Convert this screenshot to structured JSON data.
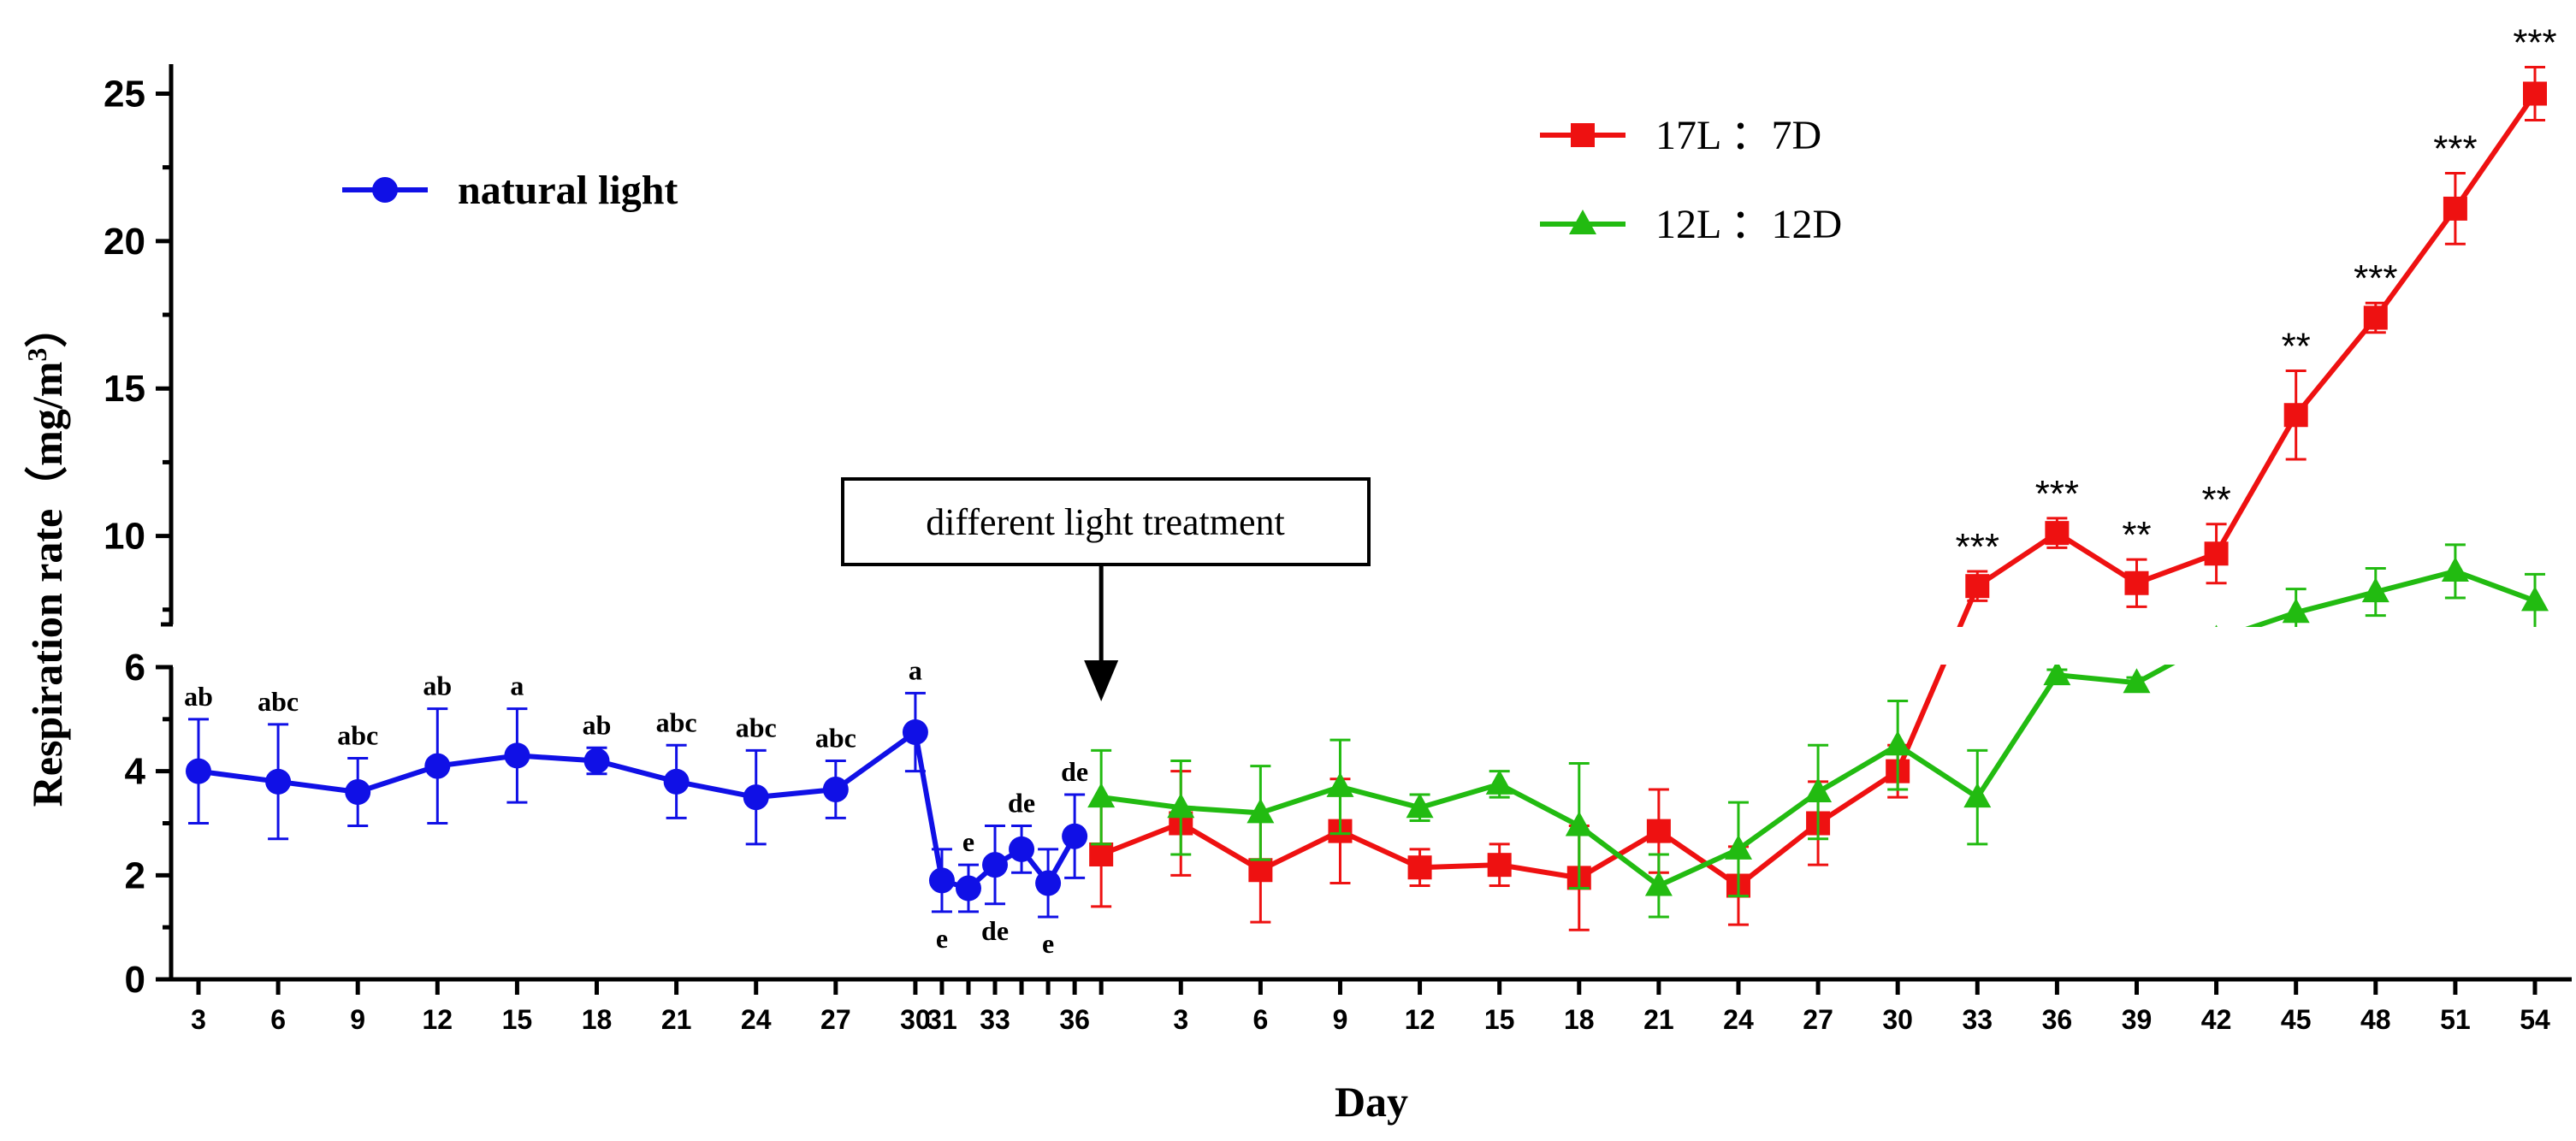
{
  "chart_data": {
    "type": "line",
    "xlabel": "Day",
    "ylabel": "Respiration rate（mg/m3）",
    "ylabel_main": "Respiration rate（mg/m",
    "ylabel_sup": "3",
    "ylabel_close": "）",
    "ylim": [
      0,
      26
    ],
    "y_axis_break": [
      6,
      7
    ],
    "yticks": [
      0,
      2,
      4,
      6,
      10,
      15,
      20,
      25
    ],
    "xtick_labels": [
      "3",
      "6",
      "9",
      "12",
      "15",
      "18",
      "21",
      "24",
      "27",
      "30",
      "31",
      "33",
      "36",
      "3",
      "6",
      "9",
      "12",
      "15",
      "18",
      "21",
      "24",
      "27",
      "30",
      "33",
      "36",
      "39",
      "42",
      "45",
      "48",
      "51",
      "54"
    ],
    "x_positions": [
      3,
      6,
      9,
      12,
      15,
      18,
      21,
      24,
      27,
      30,
      31,
      32,
      33,
      34,
      35,
      36,
      37,
      40,
      43,
      46,
      49,
      52,
      55,
      58,
      61,
      64,
      67,
      70,
      73,
      76,
      79,
      82,
      85,
      88,
      91
    ],
    "series": [
      {
        "name": "natural light",
        "color": "#1010e6",
        "marker": "circle",
        "x": [
          3,
          6,
          9,
          12,
          15,
          18,
          21,
          24,
          27,
          30,
          31,
          32,
          33,
          34,
          35,
          36
        ],
        "values": [
          4.0,
          3.8,
          3.6,
          4.1,
          4.3,
          4.2,
          3.8,
          3.5,
          3.65,
          4.75,
          1.9,
          1.75,
          2.2,
          2.5,
          1.85,
          2.75
        ],
        "errors": [
          1.0,
          1.1,
          0.65,
          1.1,
          0.9,
          0.25,
          0.7,
          0.9,
          0.55,
          0.75,
          0.6,
          0.45,
          0.75,
          0.45,
          0.65,
          0.8
        ],
        "labels": [
          "ab",
          "abc",
          "abc",
          "ab",
          "a",
          "ab",
          "abc",
          "abc",
          "abc",
          "a",
          "e",
          "e",
          "de",
          "de",
          "e",
          "de"
        ],
        "label_pos": [
          "above",
          "above",
          "above",
          "above",
          "above",
          "above",
          "above",
          "above",
          "above",
          "above",
          "below",
          "above",
          "below",
          "above",
          "below",
          "above"
        ]
      },
      {
        "name": "17L ：7D",
        "color": "#ee1111",
        "marker": "square",
        "x": [
          37,
          40,
          43,
          46,
          49,
          52,
          55,
          58,
          61,
          64,
          67,
          70,
          73,
          76,
          79,
          82,
          85,
          88,
          91
        ],
        "values": [
          2.4,
          3.0,
          2.1,
          2.85,
          2.15,
          2.2,
          1.95,
          2.85,
          1.8,
          3.0,
          4.0,
          8.3,
          10.1,
          8.4,
          9.4,
          14.1,
          17.4,
          21.1,
          25.0
        ],
        "errors": [
          1.0,
          1.0,
          1.0,
          1.0,
          0.35,
          0.4,
          1.0,
          0.8,
          0.75,
          0.8,
          0.5,
          0.5,
          0.5,
          0.8,
          1.0,
          1.5,
          0.5,
          1.2,
          0.9
        ],
        "stars": [
          "",
          "",
          "",
          "",
          "",
          "",
          "",
          "",
          "",
          "",
          "",
          "***",
          "***",
          "**",
          "**",
          "**",
          "***",
          "***",
          "***"
        ]
      },
      {
        "name": "12L ：12D",
        "color": "#22bb11",
        "marker": "triangle",
        "x": [
          37,
          40,
          43,
          46,
          49,
          52,
          55,
          58,
          61,
          64,
          67,
          70,
          73,
          76,
          79,
          82,
          85,
          88,
          91
        ],
        "values": [
          3.5,
          3.3,
          3.2,
          3.7,
          3.3,
          3.75,
          2.95,
          1.8,
          2.5,
          3.6,
          4.5,
          3.5,
          5.85,
          5.7,
          6.65,
          7.4,
          8.1,
          8.8,
          7.8
        ],
        "errors": [
          0.9,
          0.9,
          0.9,
          0.9,
          0.25,
          0.25,
          1.2,
          0.6,
          0.9,
          0.9,
          0.85,
          0.9,
          0.1,
          0.1,
          0.1,
          0.8,
          0.8,
          0.9,
          0.9
        ]
      }
    ],
    "annotation": "different light treatment",
    "legend": [
      "natural light",
      "17L ：7D",
      "12L ：12D"
    ]
  }
}
